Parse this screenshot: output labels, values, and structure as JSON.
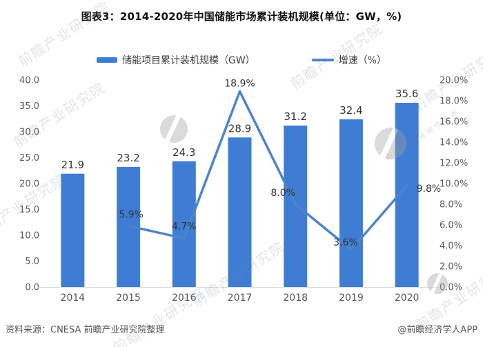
{
  "title": "图表3：2014-2020年中国储能市场累计装机规模(单位：GW，%)",
  "legend": {
    "bar_label": "储能项目累计装机规模（GW）",
    "line_label": "增速（%）"
  },
  "colors": {
    "bar": "#3E7DD3",
    "line": "#4C84CC",
    "axis_text": "#595959",
    "label_text": "#333333",
    "baseline": "#D9D9D9"
  },
  "chart_data": {
    "type": "bar",
    "subtype": "bar+line combo, dual axis",
    "categories": [
      "2014",
      "2015",
      "2016",
      "2017",
      "2018",
      "2019",
      "2020"
    ],
    "series": [
      {
        "name": "储能项目累计装机规模（GW）",
        "type": "bar",
        "axis": "left",
        "values": [
          21.9,
          23.2,
          24.3,
          28.9,
          31.2,
          32.4,
          35.6
        ],
        "labels": [
          "21.9",
          "23.2",
          "24.3",
          "28.9",
          "31.2",
          "32.4",
          "35.6"
        ]
      },
      {
        "name": "增速（%）",
        "type": "line",
        "axis": "right",
        "values": [
          null,
          5.9,
          4.7,
          18.9,
          8.0,
          3.6,
          9.8
        ],
        "labels": [
          null,
          "5.9%",
          "4.7%",
          "18.9%",
          "8.0%",
          "3.6%",
          "9.8%"
        ]
      }
    ],
    "left_axis": {
      "min": 0,
      "max": 40,
      "ticks": [
        "0.0",
        "5.0",
        "10.0",
        "15.0",
        "20.0",
        "25.0",
        "30.0",
        "35.0",
        "40.0"
      ]
    },
    "right_axis": {
      "min": 0,
      "max": 20,
      "ticks": [
        "0.0%",
        "2.0%",
        "4.0%",
        "6.0%",
        "8.0%",
        "10.0%",
        "12.0%",
        "14.0%",
        "16.0%",
        "18.0%",
        "20.0%"
      ]
    },
    "grid": false,
    "legend_position": "top"
  },
  "footer": {
    "source": "资料来源：CNESA 前瞻产业研究院整理",
    "credit": "@前瞻经济学人APP"
  },
  "watermark": {
    "text": "前瞻产业研究院",
    "subtext": "中国产业咨询领导者"
  }
}
